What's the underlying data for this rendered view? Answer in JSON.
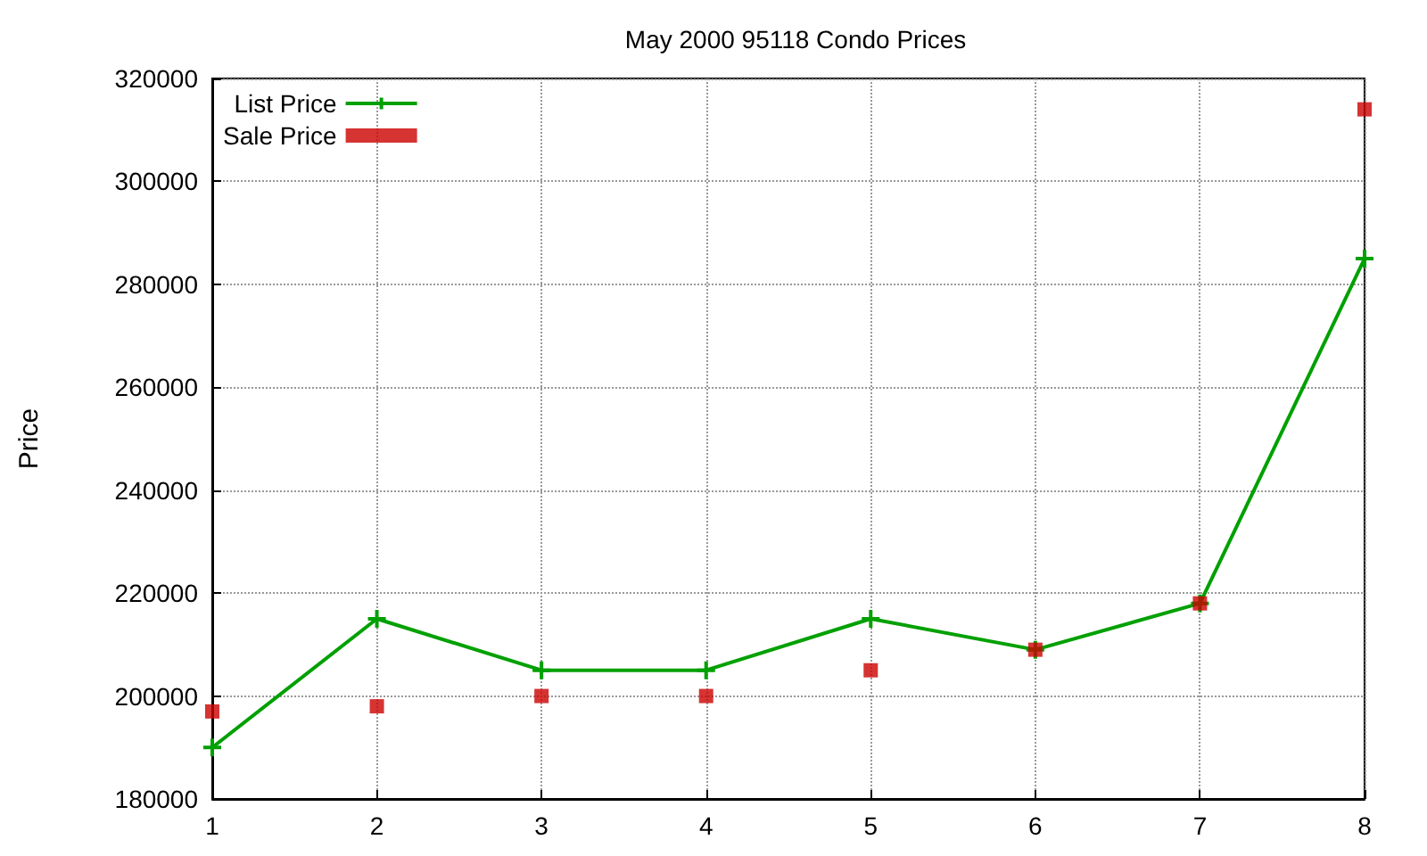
{
  "chart_data": {
    "type": "line",
    "title": "May 2000 95118 Condo Prices",
    "ylabel": "Price",
    "x": [
      1,
      2,
      3,
      4,
      5,
      6,
      7,
      8
    ],
    "series": [
      {
        "name": "List Price",
        "color": "#00a000",
        "marker": "cross",
        "line_style": "solid",
        "values": [
          190000,
          215000,
          205000,
          205000,
          215000,
          209000,
          218000,
          285000
        ]
      },
      {
        "name": "Sale Price",
        "type": "scatter",
        "color": "#cc0000",
        "marker": "square",
        "values": [
          197000,
          198000,
          200000,
          200000,
          205000,
          209000,
          218000,
          314000
        ]
      }
    ],
    "xlim": [
      1,
      8
    ],
    "xticks": [
      1,
      2,
      3,
      4,
      5,
      6,
      7,
      8
    ],
    "ylim": [
      180000,
      320000
    ],
    "yticks": [
      180000,
      200000,
      220000,
      240000,
      260000,
      280000,
      300000,
      320000
    ],
    "grid": true,
    "legend": "top left"
  }
}
